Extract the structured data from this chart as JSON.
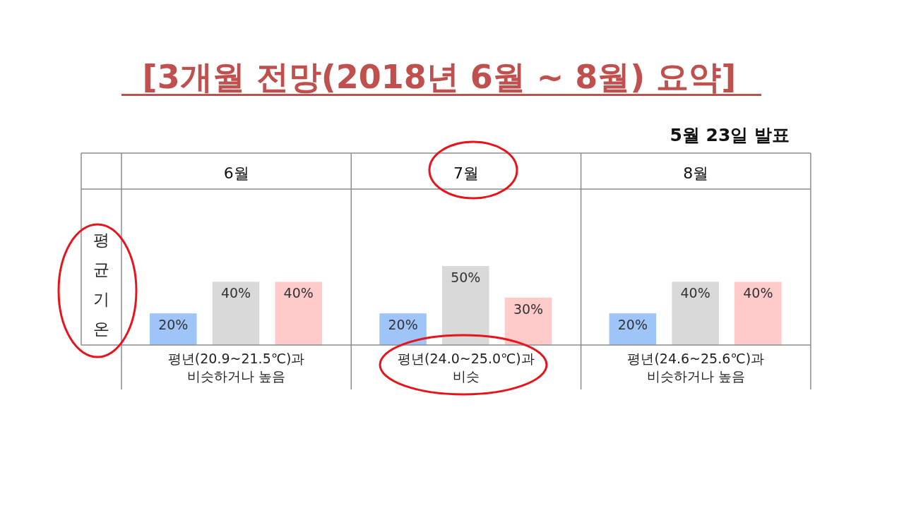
{
  "chart_data": [
    {
      "type": "bar",
      "title": "6월",
      "ylabel": "평균기온",
      "xlabel": "평년(20.9~21.5℃)과\n비슷하거나 높음",
      "annotations": [
        "[3개월 전망(2018년 6월 ~ 8월) 요약]",
        "5월 23일 발표"
      ],
      "categories": [
        null,
        null,
        null
      ],
      "values": [
        20,
        40,
        40
      ],
      "value_labels": [
        "20%",
        "40%",
        "40%"
      ],
      "colors": [
        "#9fc5f8",
        "#d9d9d9",
        "#ffcaca"
      ]
    },
    {
      "type": "bar",
      "title": "7월",
      "xlabel": "평년(24.0~25.0℃)과\n비슷",
      "categories": [
        null,
        null,
        null
      ],
      "values": [
        20,
        50,
        30
      ],
      "value_labels": [
        "20%",
        "50%",
        "30%"
      ],
      "colors": [
        "#9fc5f8",
        "#d9d9d9",
        "#ffcaca"
      ]
    },
    {
      "type": "bar",
      "title": "8월",
      "xlabel": "평년(24.6~25.6℃)과\n비슷하거나 높음",
      "categories": [
        null,
        null,
        null
      ],
      "values": [
        20,
        40,
        40
      ],
      "value_labels": [
        "20%",
        "40%",
        "40%"
      ],
      "colors": [
        "#9fc5f8",
        "#d9d9d9",
        "#ffcaca"
      ]
    }
  ]
}
